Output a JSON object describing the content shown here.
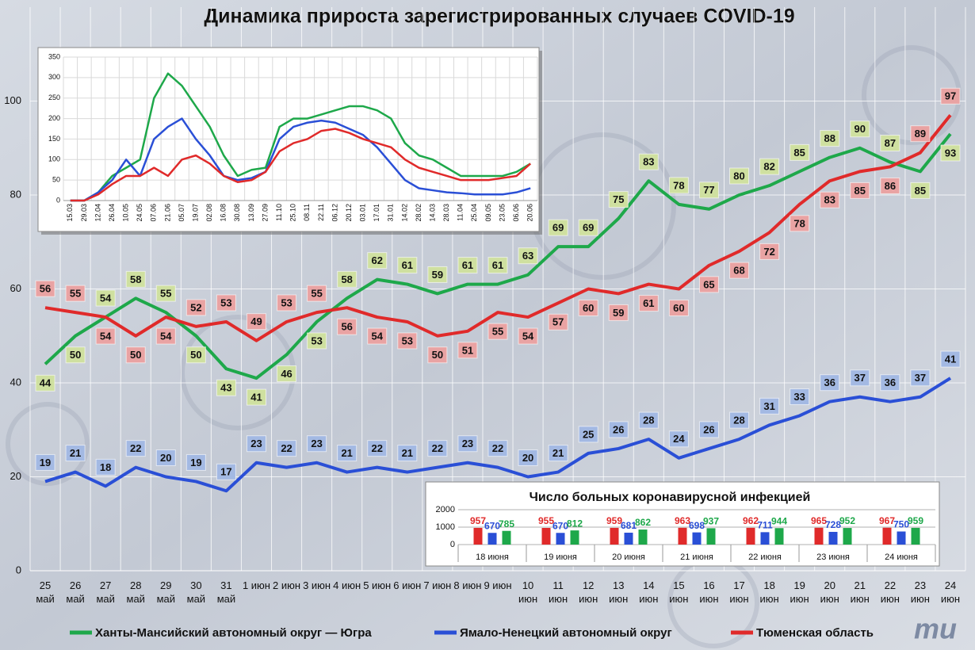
{
  "chart_data": [
    {
      "type": "line",
      "title": "Динамика прироста зарегистрированных случаев COVID-19",
      "categories": [
        "25 май",
        "26 май",
        "27 май",
        "28 май",
        "29 май",
        "30 май",
        "31 май",
        "1 июн",
        "2 июн",
        "3 июн",
        "4 июн",
        "5 июн",
        "6 июн",
        "7 июн",
        "8 июн",
        "9 июн",
        "10 июн",
        "11 июн",
        "12 июн",
        "13 июн",
        "14 июн",
        "15 июн",
        "16 июн",
        "17 июн",
        "18 июн",
        "19 июн",
        "20 июн",
        "21 июн",
        "22 июн",
        "23 июн",
        "24 июн"
      ],
      "series": [
        {
          "name": "Ханты-Мансийский автономный округ — Югра",
          "color": "#1ea84a",
          "label_color": "#cfe0a0",
          "values": [
            44,
            50,
            54,
            58,
            55,
            50,
            43,
            41,
            46,
            53,
            58,
            62,
            61,
            59,
            61,
            61,
            63,
            69,
            69,
            75,
            83,
            78,
            77,
            80,
            82,
            85,
            88,
            90,
            87,
            85,
            93
          ]
        },
        {
          "name": "Ямало-Ненецкий автономный округ",
          "color": "#2a4fd6",
          "label_color": "#a3b9e3",
          "values": [
            19,
            21,
            18,
            22,
            20,
            19,
            17,
            23,
            22,
            23,
            21,
            22,
            21,
            22,
            23,
            22,
            20,
            21,
            25,
            26,
            28,
            24,
            26,
            28,
            31,
            33,
            36,
            37,
            36,
            37,
            41
          ]
        },
        {
          "name": "Тюменская область",
          "color": "#e02a2a",
          "label_color": "#e9a3a3",
          "values": [
            56,
            55,
            54,
            50,
            54,
            52,
            53,
            49,
            53,
            55,
            56,
            54,
            53,
            50,
            51,
            55,
            54,
            57,
            60,
            59,
            61,
            60,
            65,
            68,
            72,
            78,
            83,
            85,
            86,
            89,
            97
          ]
        }
      ],
      "ylim": [
        0,
        120
      ],
      "yticks": [
        0,
        20,
        40,
        60,
        80,
        100
      ],
      "grid": true,
      "legend": "bottom",
      "logo": "mu"
    },
    {
      "type": "line",
      "categories": [
        "15.03",
        "29.03",
        "12.04",
        "26.04",
        "10.05",
        "24.05",
        "07.06",
        "21.06",
        "05.07",
        "19.07",
        "02.08",
        "16.08",
        "30.08",
        "13.09",
        "27.09",
        "11.10",
        "25.10",
        "08.11",
        "22.11",
        "06.12",
        "20.12",
        "03.01",
        "17.01",
        "31.01",
        "14.02",
        "28.02",
        "14.03",
        "28.03",
        "11.04",
        "25.04",
        "09.05",
        "23.05",
        "06.06",
        "20.06"
      ],
      "series": [
        {
          "color": "#1ea84a",
          "values": [
            0,
            0,
            20,
            60,
            80,
            100,
            250,
            310,
            280,
            230,
            180,
            110,
            60,
            75,
            80,
            180,
            200,
            200,
            210,
            220,
            230,
            230,
            220,
            200,
            140,
            110,
            100,
            80,
            60,
            60,
            60,
            60,
            70,
            90
          ]
        },
        {
          "color": "#2a4fd6",
          "values": [
            0,
            0,
            20,
            50,
            100,
            60,
            150,
            180,
            200,
            150,
            110,
            60,
            50,
            55,
            70,
            150,
            180,
            190,
            195,
            190,
            175,
            160,
            130,
            90,
            50,
            30,
            25,
            20,
            18,
            15,
            15,
            15,
            20,
            30
          ]
        },
        {
          "color": "#e02a2a",
          "values": [
            0,
            0,
            15,
            40,
            60,
            60,
            80,
            60,
            100,
            110,
            90,
            60,
            45,
            50,
            70,
            120,
            140,
            150,
            170,
            175,
            165,
            150,
            140,
            130,
            100,
            80,
            70,
            60,
            50,
            50,
            50,
            55,
            60,
            90
          ]
        }
      ],
      "ylim": [
        0,
        350
      ],
      "yticks": [
        0,
        50,
        100,
        150,
        200,
        250,
        300,
        350
      ],
      "grid": true
    },
    {
      "type": "bar",
      "title": "Число больных коронавирусной  инфекцией",
      "categories": [
        "18 июня",
        "19 июня",
        "20 июня",
        "21 июня",
        "22 июня",
        "23 июня",
        "24 июня"
      ],
      "series": [
        {
          "color": "#e02a2a",
          "values": [
            957,
            955,
            959,
            963,
            962,
            965,
            967
          ]
        },
        {
          "color": "#2a4fd6",
          "values": [
            670,
            670,
            681,
            698,
            711,
            728,
            750
          ]
        },
        {
          "color": "#1ea84a",
          "values": [
            785,
            812,
            862,
            937,
            944,
            952,
            959
          ]
        }
      ],
      "ylim": [
        0,
        2000
      ],
      "yticks": [
        0,
        1000,
        2000
      ],
      "grid": true
    }
  ]
}
